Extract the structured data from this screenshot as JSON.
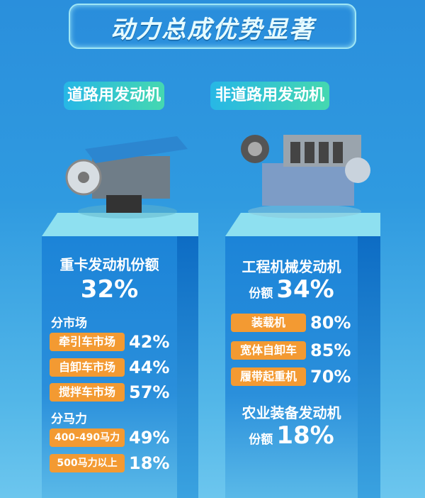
{
  "title": "动力总成优势显著",
  "left": {
    "category": "道路用发动机",
    "heading": "重卡发动机份额",
    "share": "32%",
    "section1": "分市场",
    "markets": [
      {
        "label": "牵引车市场",
        "value": "42%"
      },
      {
        "label": "自卸车市场",
        "value": "44%"
      },
      {
        "label": "搅拌车市场",
        "value": "57%"
      }
    ],
    "section2": "分马力",
    "power": [
      {
        "label": "400-490马力",
        "value": "49%"
      },
      {
        "label": "500马力以上",
        "value": "18%"
      }
    ]
  },
  "right": {
    "category": "非道路用发动机",
    "heading": "工程机械发动机",
    "share_label": "份额",
    "share": "34%",
    "machines": [
      {
        "label": "装载机",
        "value": "80%"
      },
      {
        "label": "宽体自卸车",
        "value": "85%"
      },
      {
        "label": "履带起重机",
        "value": "70%"
      }
    ],
    "heading2": "农业装备发动机",
    "share2_label": "份额",
    "share2": "18%"
  },
  "colors": {
    "tag": "#f39a32",
    "pillar_top": "#8ee0f0",
    "accent": "#45d8b0"
  }
}
